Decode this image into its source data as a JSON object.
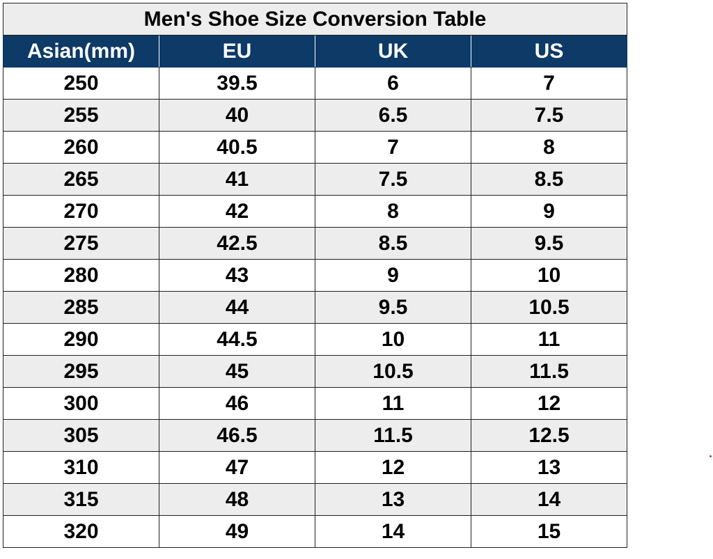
{
  "title": "Men's Shoe Size Conversion Table",
  "columns": [
    "Asian(mm)",
    "EU",
    "UK",
    "US"
  ],
  "rows": [
    [
      "250",
      "39.5",
      "6",
      "7"
    ],
    [
      "255",
      "40",
      "6.5",
      "7.5"
    ],
    [
      "260",
      "40.5",
      "7",
      "8"
    ],
    [
      "265",
      "41",
      "7.5",
      "8.5"
    ],
    [
      "270",
      "42",
      "8",
      "9"
    ],
    [
      "275",
      "42.5",
      "8.5",
      "9.5"
    ],
    [
      "280",
      "43",
      "9",
      "10"
    ],
    [
      "285",
      "44",
      "9.5",
      "10.5"
    ],
    [
      "290",
      "44.5",
      "10",
      "11"
    ],
    [
      "295",
      "45",
      "10.5",
      "11.5"
    ],
    [
      "300",
      "46",
      "11",
      "12"
    ],
    [
      "305",
      "46.5",
      "11.5",
      "12.5"
    ],
    [
      "310",
      "47",
      "12",
      "13"
    ],
    [
      "315",
      "48",
      "13",
      "14"
    ],
    [
      "320",
      "49",
      "14",
      "15"
    ]
  ],
  "colors": {
    "header_background": "#0d3a66",
    "header_text": "#ffffff",
    "stripe": "#ededed"
  }
}
